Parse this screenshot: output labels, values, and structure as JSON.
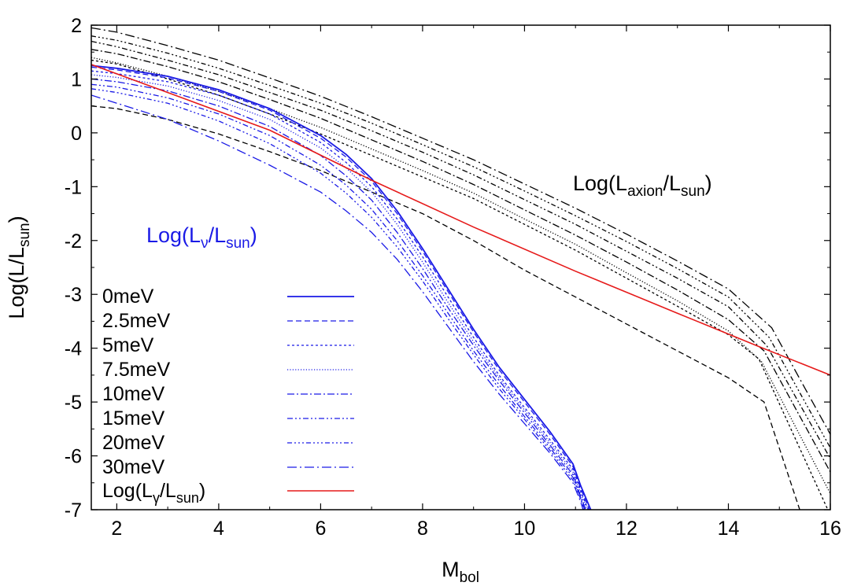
{
  "chart_data": {
    "type": "line",
    "title": "",
    "xlabel": {
      "main": "M",
      "sub": "bol"
    },
    "ylabel": {
      "prefix": "Log(L/L",
      "sub": "sun",
      "suffix": ")"
    },
    "xlim": [
      1.5,
      16
    ],
    "ylim": [
      -7,
      2
    ],
    "xticks": [
      2,
      4,
      6,
      8,
      10,
      12,
      14,
      16
    ],
    "yticks": [
      -7,
      -6,
      -5,
      -4,
      -3,
      -2,
      -1,
      0,
      1,
      2
    ],
    "grid": false,
    "legend_position": "bottom-left",
    "annotations": {
      "neutrino": {
        "prefix": "Log(L",
        "sub1": "ν",
        "mid": "/L",
        "sub2": "sun",
        "suffix": ")",
        "color": "#1a1ae6"
      },
      "axion": {
        "prefix": "Log(L",
        "sub1": "axion",
        "mid": "/L",
        "sub2": "sun",
        "suffix": ")",
        "color": "#000000"
      }
    },
    "legend": [
      {
        "label": "0meV",
        "color": "#1a1ae6",
        "dash": "solid"
      },
      {
        "label": "2.5meV",
        "color": "#1a1ae6",
        "dash": "dashed"
      },
      {
        "label": "5meV",
        "color": "#1a1ae6",
        "dash": "short-dashed"
      },
      {
        "label": "7.5meV",
        "color": "#1a1ae6",
        "dash": "dotted"
      },
      {
        "label": "10meV",
        "color": "#1a1ae6",
        "dash": "dash-dot"
      },
      {
        "label": "15meV",
        "color": "#1a1ae6",
        "dash": "dash-dot-dot"
      },
      {
        "label": "20meV",
        "color": "#1a1ae6",
        "dash": "dash-dot-dot-dot"
      },
      {
        "label": "30meV",
        "color": "#1a1ae6",
        "dash": "long-dash-dot"
      }
    ],
    "legend_photon": {
      "prefix": "Log(L",
      "sub1": "γ",
      "mid": "/L",
      "sub2": "sun",
      "suffix": ")",
      "color": "#e61a1a"
    },
    "photon_series": {
      "x": [
        1.5,
        3,
        5,
        7,
        9,
        11,
        13,
        14.6,
        16
      ],
      "y": [
        1.27,
        0.75,
        0.05,
        -0.88,
        -1.75,
        -2.57,
        -3.35,
        -3.97,
        -4.5
      ]
    },
    "neutrino_series": [
      {
        "name": "0meV",
        "dash": "solid",
        "x": [
          1.5,
          2,
          3,
          4,
          5,
          6,
          6.5,
          7,
          7.5,
          8,
          8.5,
          9,
          9.5,
          10,
          10.5,
          10.95,
          11.1,
          11.3
        ],
        "y": [
          1.25,
          1.2,
          1.05,
          0.8,
          0.45,
          -0.05,
          -0.4,
          -0.85,
          -1.45,
          -2.15,
          -2.9,
          -3.65,
          -4.35,
          -4.95,
          -5.55,
          -6.15,
          -6.55,
          -7.0
        ]
      },
      {
        "name": "2.5meV",
        "dash": "dashed",
        "x": [
          1.5,
          2,
          3,
          4,
          5,
          6,
          6.5,
          7,
          7.5,
          8,
          8.5,
          9,
          9.5,
          10,
          10.5,
          10.95,
          11.1,
          11.27
        ],
        "y": [
          1.22,
          1.17,
          1.02,
          0.77,
          0.42,
          -0.1,
          -0.45,
          -0.9,
          -1.5,
          -2.2,
          -2.95,
          -3.7,
          -4.4,
          -5.0,
          -5.6,
          -6.2,
          -6.6,
          -7.0
        ]
      },
      {
        "name": "5meV",
        "dash": "short-dashed",
        "x": [
          1.5,
          2,
          3,
          4,
          5,
          6,
          6.5,
          7,
          7.5,
          8,
          8.5,
          9,
          9.5,
          10,
          10.5,
          10.95,
          11.1,
          11.25
        ],
        "y": [
          1.15,
          1.1,
          0.95,
          0.7,
          0.35,
          -0.18,
          -0.55,
          -1.0,
          -1.6,
          -2.3,
          -3.05,
          -3.8,
          -4.5,
          -5.1,
          -5.7,
          -6.25,
          -6.65,
          -7.0
        ]
      },
      {
        "name": "7.5meV",
        "dash": "dotted",
        "x": [
          1.5,
          2,
          3,
          4,
          5,
          6,
          6.5,
          7,
          7.5,
          8,
          8.5,
          9,
          9.5,
          10,
          10.5,
          10.95,
          11.1,
          11.23
        ],
        "y": [
          1.08,
          1.03,
          0.87,
          0.6,
          0.25,
          -0.28,
          -0.65,
          -1.1,
          -1.7,
          -2.4,
          -3.15,
          -3.88,
          -4.55,
          -5.15,
          -5.75,
          -6.3,
          -6.7,
          -7.0
        ]
      },
      {
        "name": "10meV",
        "dash": "dash-dot",
        "x": [
          1.5,
          2,
          3,
          4,
          5,
          6,
          6.5,
          7,
          7.5,
          8,
          8.5,
          9,
          9.5,
          10,
          10.5,
          10.95,
          11.1,
          11.2
        ],
        "y": [
          1.0,
          0.95,
          0.78,
          0.5,
          0.12,
          -0.42,
          -0.8,
          -1.25,
          -1.85,
          -2.52,
          -3.25,
          -3.95,
          -4.6,
          -5.2,
          -5.8,
          -6.35,
          -6.75,
          -7.0
        ]
      },
      {
        "name": "15meV",
        "dash": "dash-dot-dot",
        "x": [
          1.5,
          2,
          3,
          4,
          5,
          6,
          6.5,
          7,
          7.5,
          8,
          8.5,
          9,
          9.5,
          10,
          10.5,
          10.95,
          11.1,
          11.18
        ],
        "y": [
          0.9,
          0.85,
          0.65,
          0.35,
          -0.05,
          -0.6,
          -0.97,
          -1.42,
          -2.0,
          -2.65,
          -3.35,
          -4.05,
          -4.68,
          -5.27,
          -5.85,
          -6.4,
          -6.78,
          -7.0
        ]
      },
      {
        "name": "20meV",
        "dash": "dash-dot-dot-dot",
        "x": [
          1.5,
          2,
          3,
          4,
          5,
          6,
          6.5,
          7,
          7.5,
          8,
          8.5,
          9,
          9.5,
          10,
          10.5,
          10.95,
          11.1,
          11.17
        ],
        "y": [
          0.82,
          0.75,
          0.55,
          0.22,
          -0.2,
          -0.75,
          -1.12,
          -1.57,
          -2.12,
          -2.75,
          -3.45,
          -4.12,
          -4.75,
          -5.32,
          -5.9,
          -6.45,
          -6.8,
          -7.0
        ]
      },
      {
        "name": "30meV",
        "dash": "long-dash-dot",
        "x": [
          1.5,
          2,
          3,
          4,
          5,
          6,
          6.5,
          7,
          7.5,
          8,
          8.5,
          9,
          9.5,
          10,
          10.5,
          10.95,
          11.1,
          11.15
        ],
        "y": [
          0.7,
          0.55,
          0.25,
          -0.15,
          -0.6,
          -1.1,
          -1.45,
          -1.85,
          -2.35,
          -2.95,
          -3.6,
          -4.25,
          -4.85,
          -5.4,
          -5.95,
          -6.5,
          -6.85,
          -7.0
        ]
      }
    ],
    "axion_series": [
      {
        "name": "axion-1",
        "dash": "dashed",
        "x": [
          1.5,
          2,
          3,
          4,
          5,
          6,
          7,
          8,
          9,
          10,
          11,
          12,
          13,
          14,
          14.7,
          15.4
        ],
        "y": [
          0.5,
          0.45,
          0.25,
          -0.02,
          -0.35,
          -0.7,
          -1.1,
          -1.5,
          -2.0,
          -2.55,
          -3.05,
          -3.55,
          -4.05,
          -4.55,
          -5.0,
          -7.0
        ]
      },
      {
        "name": "axion-2",
        "dash": "short-dashed",
        "x": [
          1.5,
          2,
          3,
          4,
          5,
          6,
          7,
          8,
          9,
          10,
          11,
          12,
          13,
          14,
          14.6,
          15.95
        ],
        "y": [
          1.35,
          1.28,
          1.0,
          0.7,
          0.35,
          -0.02,
          -0.42,
          -0.82,
          -1.22,
          -1.7,
          -2.18,
          -2.7,
          -3.22,
          -3.75,
          -4.2,
          -7.0
        ]
      },
      {
        "name": "axion-3",
        "dash": "dotted",
        "x": [
          1.5,
          2,
          3,
          4,
          5,
          6,
          7,
          8,
          9,
          10,
          11,
          12,
          13,
          14,
          14.65,
          16
        ],
        "y": [
          1.4,
          1.3,
          1.05,
          0.77,
          0.45,
          0.1,
          -0.3,
          -0.7,
          -1.12,
          -1.6,
          -2.07,
          -2.6,
          -3.12,
          -3.68,
          -4.25,
          -6.7
        ]
      },
      {
        "name": "axion-4",
        "dash": "dash-dot",
        "x": [
          1.5,
          2,
          3,
          4,
          5,
          6,
          7,
          8,
          9,
          10,
          11,
          12,
          13,
          14,
          14.7,
          16
        ],
        "y": [
          1.55,
          1.47,
          1.23,
          0.95,
          0.62,
          0.27,
          -0.13,
          -0.53,
          -0.96,
          -1.43,
          -1.9,
          -2.4,
          -2.92,
          -3.47,
          -4.05,
          -6.3
        ]
      },
      {
        "name": "axion-5",
        "dash": "dash-dot-dot",
        "x": [
          1.5,
          2,
          3,
          4,
          5,
          6,
          7,
          8,
          9,
          10,
          11,
          12,
          13,
          14,
          14.75,
          16
        ],
        "y": [
          1.7,
          1.6,
          1.35,
          1.08,
          0.75,
          0.42,
          0.04,
          -0.36,
          -0.78,
          -1.24,
          -1.7,
          -2.2,
          -2.7,
          -3.23,
          -3.95,
          -6.05
        ]
      },
      {
        "name": "axion-6",
        "dash": "dash-dot-dot-dot",
        "x": [
          1.5,
          2,
          3,
          4,
          5,
          6,
          7,
          8,
          9,
          10,
          11,
          12,
          13,
          14,
          14.8,
          16
        ],
        "y": [
          1.8,
          1.72,
          1.48,
          1.2,
          0.88,
          0.55,
          0.18,
          -0.22,
          -0.63,
          -1.08,
          -1.54,
          -2.02,
          -2.52,
          -3.05,
          -3.8,
          -5.85
        ]
      },
      {
        "name": "axion-7",
        "dash": "long-dash-dot",
        "x": [
          1.5,
          2,
          3,
          4,
          5,
          6,
          7,
          8,
          9,
          10,
          11,
          12,
          13,
          14,
          14.85,
          16
        ],
        "y": [
          1.95,
          1.87,
          1.62,
          1.35,
          1.02,
          0.68,
          0.3,
          -0.1,
          -0.5,
          -0.95,
          -1.4,
          -1.88,
          -2.38,
          -2.9,
          -3.62,
          -5.6
        ]
      }
    ]
  }
}
